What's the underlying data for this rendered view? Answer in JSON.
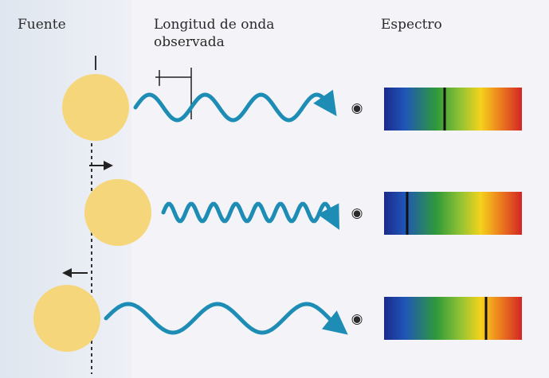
{
  "header": {
    "source": "Fuente",
    "wavelength": [
      "Longitud de onda",
      "observada"
    ],
    "spectrum": "Espectro"
  }
}
